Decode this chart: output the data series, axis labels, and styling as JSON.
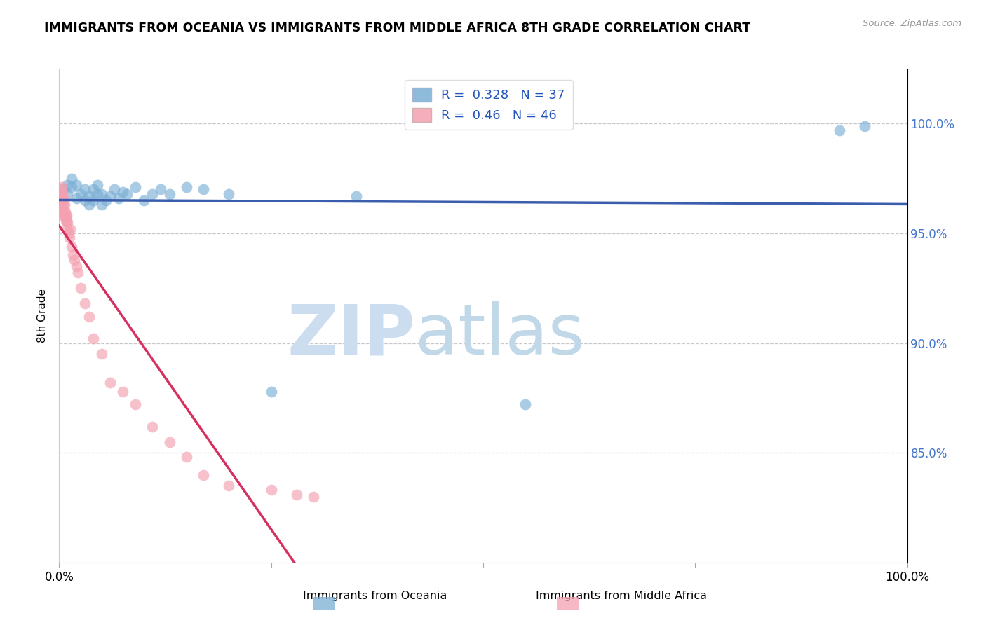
{
  "title": "IMMIGRANTS FROM OCEANIA VS IMMIGRANTS FROM MIDDLE AFRICA 8TH GRADE CORRELATION CHART",
  "source_text": "Source: ZipAtlas.com",
  "ylabel_label": "8th Grade",
  "ylabel_ticks": [
    0.85,
    0.9,
    0.95,
    1.0
  ],
  "ylabel_tick_labels": [
    "85.0%",
    "90.0%",
    "95.0%",
    "100.0%"
  ],
  "xmin": 0.0,
  "xmax": 1.0,
  "ymin": 0.8,
  "ymax": 1.025,
  "blue_R": 0.328,
  "blue_N": 37,
  "pink_R": 0.46,
  "pink_N": 46,
  "blue_color": "#7bafd4",
  "pink_color": "#f4a0b0",
  "blue_line_color": "#3a5dae",
  "pink_line_color": "#d63060",
  "legend_label_blue": "Immigrants from Oceania",
  "legend_label_pink": "Immigrants from Middle Africa",
  "watermark_zip": "ZIP",
  "watermark_atlas": "atlas",
  "watermark_color_zip": "#ccddf0",
  "watermark_color_atlas": "#c0d8e8",
  "blue_scatter_x": [
    0.005,
    0.01,
    0.01,
    0.015,
    0.015,
    0.02,
    0.02,
    0.025,
    0.03,
    0.03,
    0.035,
    0.035,
    0.04,
    0.04,
    0.045,
    0.045,
    0.05,
    0.05,
    0.055,
    0.06,
    0.065,
    0.07,
    0.075,
    0.08,
    0.09,
    0.1,
    0.11,
    0.12,
    0.13,
    0.15,
    0.17,
    0.2,
    0.25,
    0.35,
    0.55,
    0.92,
    0.95
  ],
  "blue_scatter_y": [
    0.97,
    0.968,
    0.972,
    0.971,
    0.975,
    0.966,
    0.972,
    0.968,
    0.965,
    0.97,
    0.963,
    0.967,
    0.965,
    0.97,
    0.968,
    0.972,
    0.963,
    0.968,
    0.965,
    0.967,
    0.97,
    0.966,
    0.969,
    0.968,
    0.971,
    0.965,
    0.968,
    0.97,
    0.968,
    0.971,
    0.97,
    0.968,
    0.878,
    0.967,
    0.872,
    0.997,
    0.999
  ],
  "pink_scatter_x": [
    0.002,
    0.002,
    0.003,
    0.003,
    0.003,
    0.004,
    0.004,
    0.004,
    0.005,
    0.005,
    0.005,
    0.005,
    0.006,
    0.006,
    0.007,
    0.007,
    0.008,
    0.008,
    0.009,
    0.009,
    0.01,
    0.01,
    0.011,
    0.012,
    0.013,
    0.015,
    0.016,
    0.018,
    0.02,
    0.022,
    0.025,
    0.03,
    0.035,
    0.04,
    0.05,
    0.06,
    0.075,
    0.09,
    0.11,
    0.13,
    0.15,
    0.17,
    0.2,
    0.25,
    0.28,
    0.3
  ],
  "pink_scatter_y": [
    0.968,
    0.97,
    0.965,
    0.967,
    0.971,
    0.963,
    0.965,
    0.968,
    0.958,
    0.96,
    0.963,
    0.966,
    0.96,
    0.963,
    0.958,
    0.96,
    0.956,
    0.958,
    0.955,
    0.958,
    0.952,
    0.955,
    0.95,
    0.948,
    0.952,
    0.944,
    0.94,
    0.938,
    0.935,
    0.932,
    0.925,
    0.918,
    0.912,
    0.902,
    0.895,
    0.882,
    0.878,
    0.872,
    0.862,
    0.855,
    0.848,
    0.84,
    0.835,
    0.833,
    0.831,
    0.83
  ]
}
